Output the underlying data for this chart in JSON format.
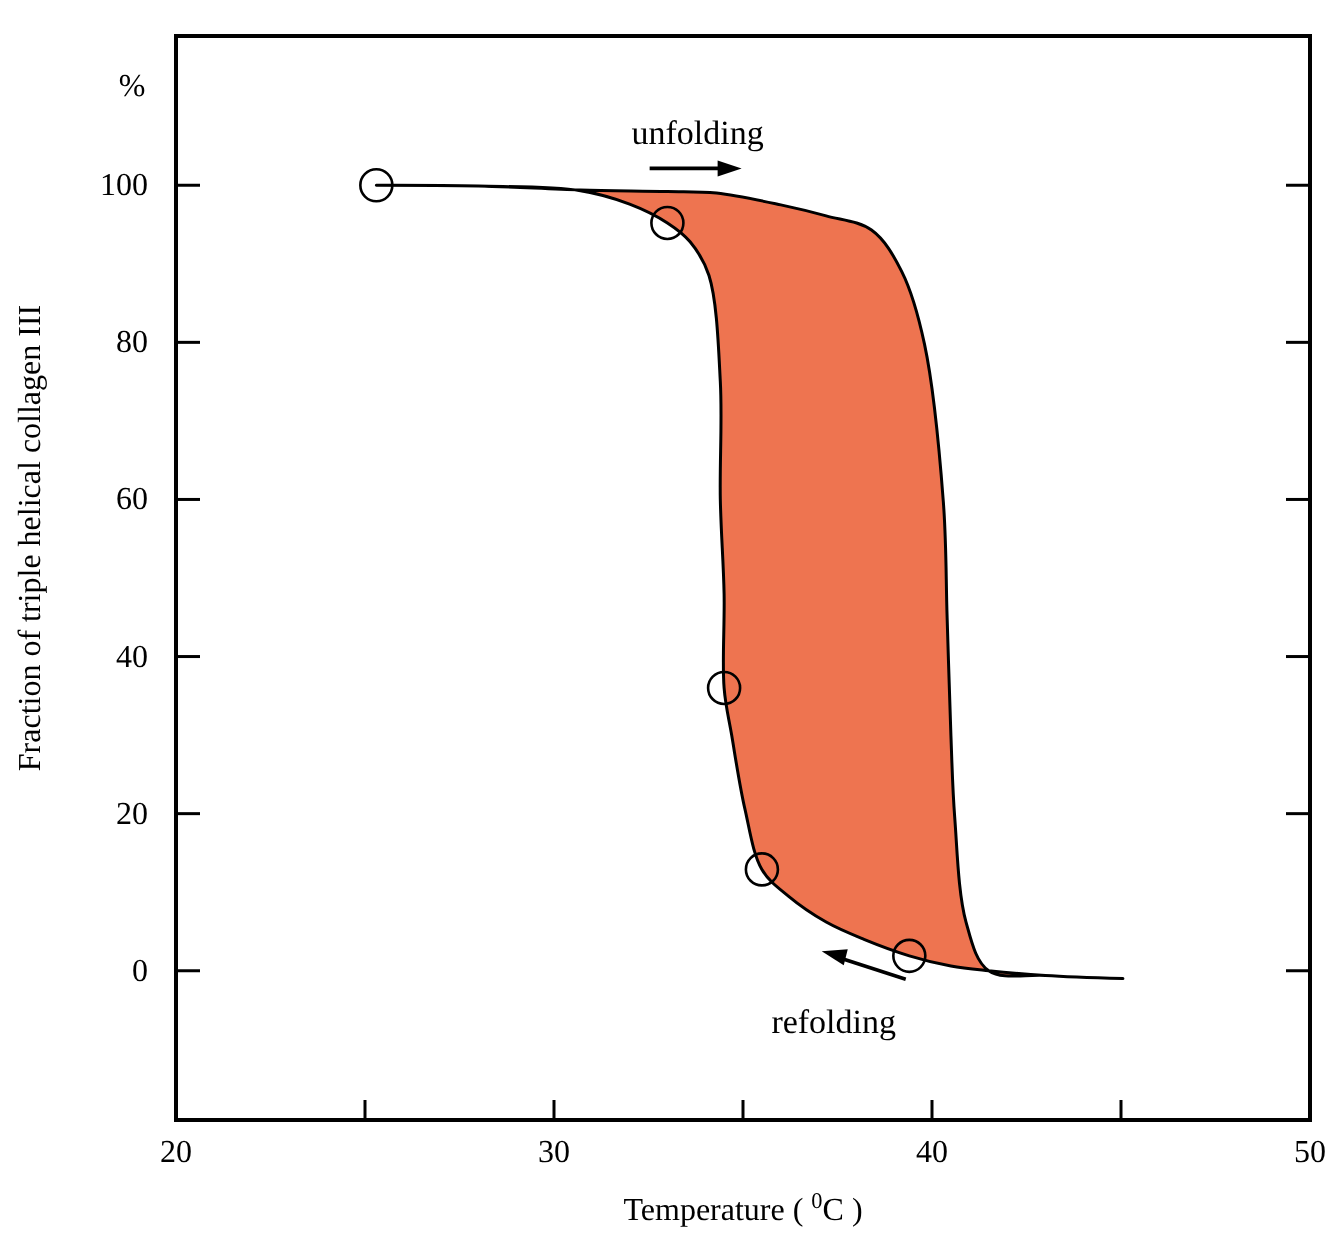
{
  "chart_data": {
    "type": "area",
    "xlabel": "Temperature ( $^{0}$C )",
    "ylabel": "Fraction of triple helical collagen III",
    "xlim": [
      20,
      50
    ],
    "xticks": [
      20,
      {
        "value": 25,
        "label": null
      },
      30,
      {
        "value": 35,
        "label": null
      },
      40,
      {
        "value": 45,
        "label": null
      },
      50
    ],
    "ylim": [
      -19,
      119
    ],
    "yticks": [
      0,
      20,
      40,
      60,
      80,
      100
    ],
    "grid": false,
    "annotations": [
      "%",
      "unfolding",
      "refolding"
    ],
    "series": [
      {
        "color": "#ee7450",
        "x": [
          25.3,
          28,
          30.7,
          33,
          34.3,
          36,
          37.2,
          38.4,
          39.2,
          39.8,
          40.3,
          40.4,
          40.5,
          40.6,
          40.9,
          41.5,
          43,
          45.05,
          43,
          41.5,
          40.5,
          39.4,
          38.2,
          37.2,
          36.2,
          35.5,
          35.05,
          34.7,
          34.5,
          34.5,
          34.4,
          34.4,
          34.1,
          33.6,
          33,
          32,
          30.7,
          28,
          25.3
        ],
        "values": [
          100,
          99.9,
          99.4,
          99.2,
          99,
          97.5,
          96.1,
          94.3,
          89,
          79.8,
          59.7,
          45,
          30,
          19.6,
          6.2,
          0,
          -0.6,
          -1,
          -0.6,
          0,
          0.6,
          1.9,
          4,
          6.2,
          9.5,
          12.9,
          20.6,
          30,
          36,
          48,
          60,
          75,
          88.5,
          92.8,
          95.2,
          97.6,
          99.3,
          99.9,
          100
        ]
      },
      {
        "type": "scatter",
        "marker": "circle",
        "color": "#000000",
        "x": [
          25.3,
          33,
          34.5,
          35.5,
          39.4
        ],
        "values": [
          100,
          95.2,
          36,
          12.9,
          1.9
        ]
      }
    ]
  }
}
